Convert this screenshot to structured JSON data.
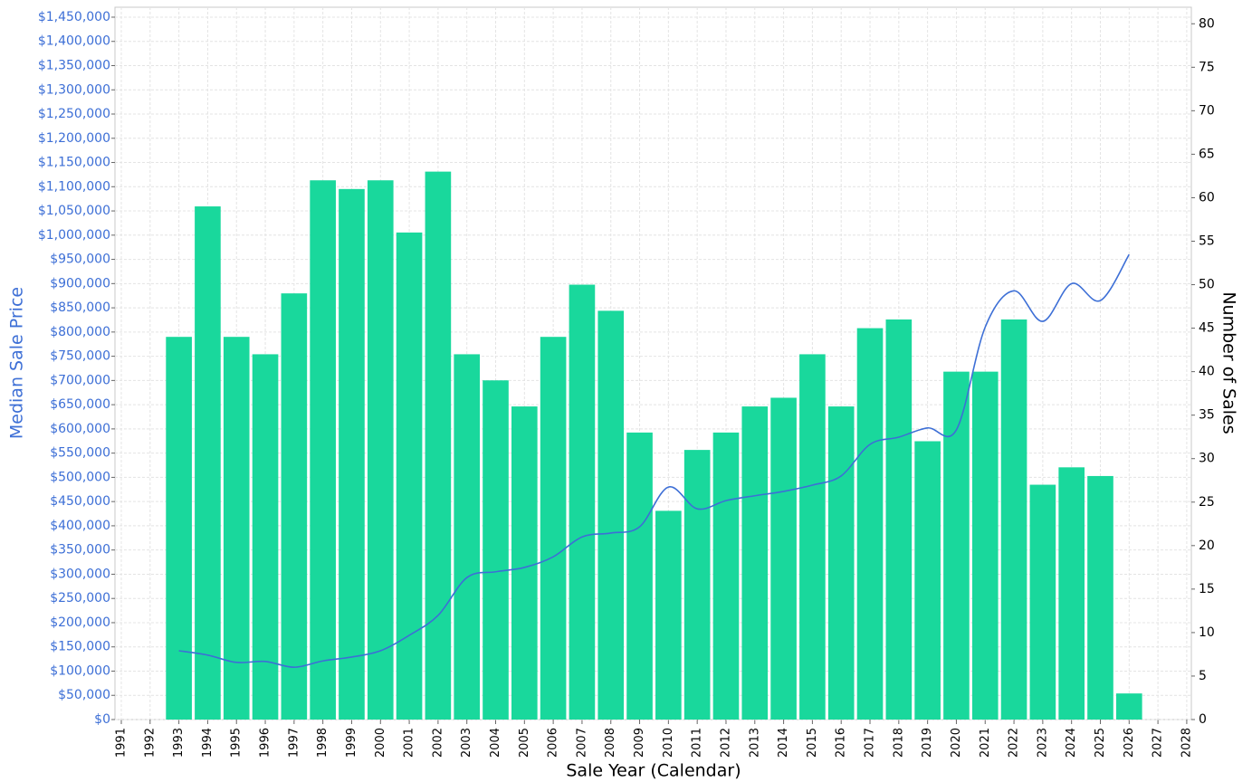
{
  "chart_data": {
    "type": "combo",
    "x_label": "Sale Year (Calendar)",
    "y_label": "Median Sale Price",
    "y2_label": "Number of Sales",
    "x": [
      1993,
      1994,
      1995,
      1996,
      1997,
      1998,
      1999,
      2000,
      2001,
      2002,
      2003,
      2004,
      2005,
      2006,
      2007,
      2008,
      2009,
      2010,
      2011,
      2012,
      2013,
      2014,
      2015,
      2016,
      2017,
      2018,
      2019,
      2020,
      2021,
      2022,
      2023,
      2024,
      2025,
      2026
    ],
    "series": [
      {
        "name": "Number of Sales",
        "type": "bar",
        "axis": "y2",
        "color": "#19d89c",
        "values": [
          44,
          59,
          44,
          42,
          49,
          62,
          61,
          62,
          56,
          63,
          42,
          39,
          36,
          44,
          50,
          47,
          33,
          24,
          31,
          33,
          36,
          37,
          42,
          36,
          45,
          46,
          32,
          40,
          40,
          46,
          27,
          29,
          28,
          3
        ]
      },
      {
        "name": "Median Sale Price",
        "type": "line",
        "axis": "y",
        "color": "#3d6fd6",
        "values": [
          142000,
          133000,
          118000,
          120000,
          108000,
          121000,
          129000,
          142000,
          174000,
          215000,
          293000,
          305000,
          314000,
          336000,
          377000,
          385000,
          398000,
          480000,
          435000,
          452000,
          462000,
          471000,
          484000,
          503000,
          568000,
          583000,
          602000,
          598000,
          810000,
          885000,
          822000,
          900000,
          865000,
          960000
        ]
      }
    ],
    "xlim": [
      1990.78,
      2028.16
    ],
    "xticks": [
      1991,
      1992,
      1993,
      1994,
      1995,
      1996,
      1997,
      1998,
      1999,
      2000,
      2001,
      2002,
      2003,
      2004,
      2005,
      2006,
      2007,
      2008,
      2009,
      2010,
      2011,
      2012,
      2013,
      2014,
      2015,
      2016,
      2017,
      2018,
      2019,
      2020,
      2021,
      2022,
      2023,
      2024,
      2025,
      2026,
      2027,
      2028
    ],
    "ylim": [
      0,
      1470500
    ],
    "yticks": [
      {
        "value": 0,
        "label": "$0"
      },
      {
        "value": 50000,
        "label": "$50,000"
      },
      {
        "value": 100000,
        "label": "$100,000"
      },
      {
        "value": 150000,
        "label": "$150,000"
      },
      {
        "value": 200000,
        "label": "$200,000"
      },
      {
        "value": 250000,
        "label": "$250,000"
      },
      {
        "value": 300000,
        "label": "$300,000"
      },
      {
        "value": 350000,
        "label": "$350,000"
      },
      {
        "value": 400000,
        "label": "$400,000"
      },
      {
        "value": 450000,
        "label": "$450,000"
      },
      {
        "value": 500000,
        "label": "$500,000"
      },
      {
        "value": 550000,
        "label": "$550,000"
      },
      {
        "value": 600000,
        "label": "$600,000"
      },
      {
        "value": 650000,
        "label": "$650,000"
      },
      {
        "value": 700000,
        "label": "$700,000"
      },
      {
        "value": 750000,
        "label": "$750,000"
      },
      {
        "value": 800000,
        "label": "$800,000"
      },
      {
        "value": 850000,
        "label": "$850,000"
      },
      {
        "value": 900000,
        "label": "$900,000"
      },
      {
        "value": 950000,
        "label": "$950,000"
      },
      {
        "value": 1000000,
        "label": "$1,000,000"
      },
      {
        "value": 1050000,
        "label": "$1,050,000"
      },
      {
        "value": 1100000,
        "label": "$1,100,000"
      },
      {
        "value": 1150000,
        "label": "$1,150,000"
      },
      {
        "value": 1200000,
        "label": "$1,200,000"
      },
      {
        "value": 1250000,
        "label": "$1,250,000"
      },
      {
        "value": 1300000,
        "label": "$1,300,000"
      },
      {
        "value": 1350000,
        "label": "$1,350,000"
      },
      {
        "value": 1400000,
        "label": "$1,400,000"
      },
      {
        "value": 1450000,
        "label": "$1,450,000"
      }
    ],
    "y2lim": [
      0,
      81.9
    ],
    "y2ticks": [
      0,
      5,
      10,
      15,
      20,
      25,
      30,
      35,
      40,
      45,
      50,
      55,
      60,
      65,
      70,
      75,
      80
    ],
    "grid": true
  }
}
